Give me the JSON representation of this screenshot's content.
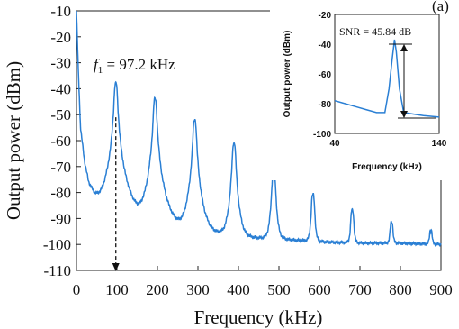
{
  "chart_data": [
    {
      "type": "line",
      "title": "",
      "xlabel": "Frequency (kHz)",
      "ylabel": "Output power (dBm)",
      "xlim": [
        0,
        900
      ],
      "ylim": [
        -110,
        -10
      ],
      "xticks": [
        "0",
        "100",
        "200",
        "300",
        "400",
        "500",
        "600",
        "700",
        "800",
        "900"
      ],
      "yticks": [
        "-10",
        "-20",
        "-30",
        "-40",
        "-50",
        "-60",
        "-70",
        "-80",
        "-90",
        "-100",
        "-110"
      ],
      "color": "#2a7fd4",
      "noise_floor": [
        [
          0,
          -10
        ],
        [
          5,
          -35
        ],
        [
          10,
          -55
        ],
        [
          20,
          -68
        ],
        [
          30,
          -76
        ],
        [
          45,
          -81
        ],
        [
          60,
          -84
        ],
        [
          80,
          -87
        ],
        [
          100,
          -89
        ],
        [
          130,
          -91
        ],
        [
          170,
          -93
        ],
        [
          220,
          -94.5
        ],
        [
          300,
          -96
        ],
        [
          400,
          -97.5
        ],
        [
          500,
          -98
        ],
        [
          600,
          -99
        ],
        [
          700,
          -99.5
        ],
        [
          800,
          -99.5
        ],
        [
          900,
          -100
        ]
      ],
      "peaks": [
        {
          "x": 97.2,
          "y": -38
        },
        {
          "x": 194,
          "y": -44
        },
        {
          "x": 292,
          "y": -52
        },
        {
          "x": 389,
          "y": -61
        },
        {
          "x": 487,
          "y": -71
        },
        {
          "x": 584,
          "y": -81
        },
        {
          "x": 681,
          "y": -87
        },
        {
          "x": 778,
          "y": -92
        },
        {
          "x": 875,
          "y": -96
        }
      ],
      "annotation": {
        "prefix": "f",
        "subscript": "1",
        "text": " = 97.2 kHz",
        "marker_x": 97.2
      }
    },
    {
      "type": "line",
      "title": "",
      "xlabel": "Frequency (kHz)",
      "ylabel": "Output power (dBm)",
      "xlim": [
        40,
        140
      ],
      "ylim": [
        -100,
        -20
      ],
      "xticks": [
        "40",
        "140"
      ],
      "yticks": [
        "-20",
        "-40",
        "-60",
        "-80",
        "-100"
      ],
      "color": "#2a7fd4",
      "points": [
        [
          40,
          -78
        ],
        [
          50,
          -80
        ],
        [
          60,
          -82
        ],
        [
          70,
          -84
        ],
        [
          80,
          -86
        ],
        [
          88,
          -86
        ],
        [
          92,
          -70
        ],
        [
          95,
          -50
        ],
        [
          97.2,
          -37
        ],
        [
          99,
          -45
        ],
        [
          102,
          -70
        ],
        [
          106,
          -86
        ],
        [
          115,
          -87
        ],
        [
          125,
          -88
        ],
        [
          140,
          -89
        ]
      ],
      "snr_label": "SNR = 45.84 dB",
      "partial_label": "(a)"
    }
  ]
}
